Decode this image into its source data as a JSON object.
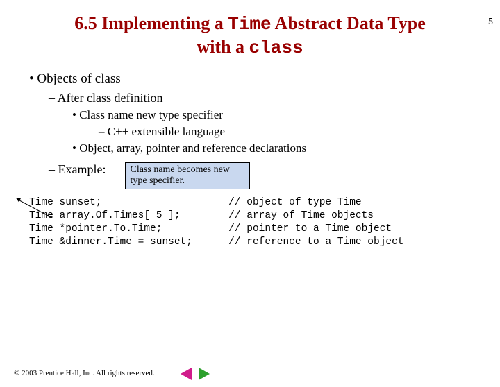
{
  "page_number": "5",
  "title": {
    "line1_prefix": "6.5 Implementing a ",
    "line1_mono": "Time",
    "line1_suffix": " Abstract Data Type",
    "line2_prefix": "with a ",
    "line2_mono": "class",
    "color": "#990000",
    "fontsize": 26
  },
  "bullets": {
    "l1_a": "Objects of class",
    "l2_a": "After class definition",
    "l3_a": "Class name new type specifier",
    "l4_a": "C++ extensible language",
    "l3_b": "Object, array, pointer and reference declarations",
    "l2_b": "Example:"
  },
  "callout": {
    "line1": "Class name becomes new",
    "line2": "type specifier.",
    "bg": "#c9d8ef"
  },
  "code": {
    "t0": "Time",
    "t1": "Time",
    "t2": "Time",
    "t3": "Time",
    "d0": "sunset;",
    "d1": "array.Of.Times[ 5 ];",
    "d2": "*pointer.To.Time;",
    "d3": "&dinner.Time = sunset;",
    "c0": "// object of type Time",
    "c1": "// array of Time objects",
    "c2": "// pointer to a Time object",
    "c3": "// reference to a Time object",
    "pad_d0": "                     ",
    "pad_d1": "        ",
    "pad_d2": "           ",
    "pad_d3": "      "
  },
  "footer": "© 2003 Prentice Hall, Inc.  All rights reserved.",
  "nav": {
    "prev_color": "#d01c8b",
    "next_color": "#2ca02c"
  }
}
